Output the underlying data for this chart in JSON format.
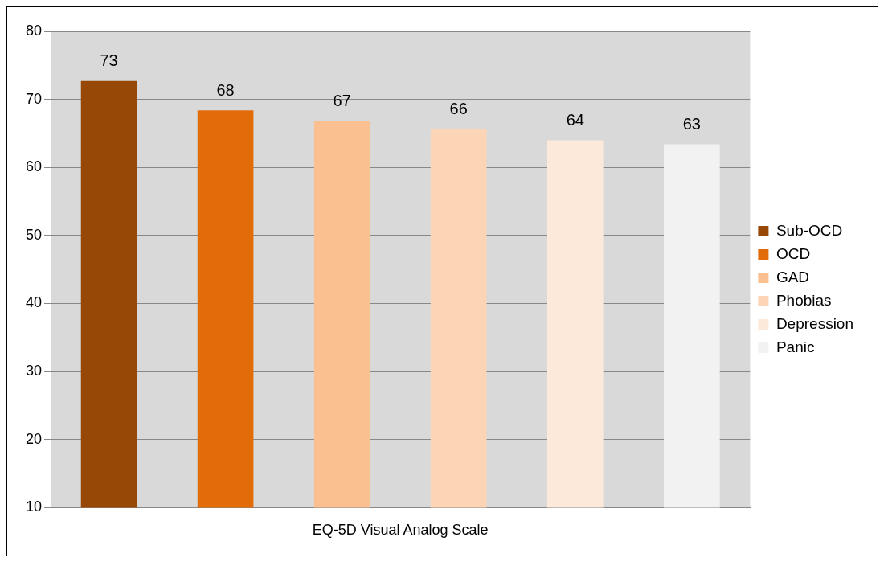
{
  "chart_data": {
    "type": "bar",
    "categories": [
      "EQ-5D Visual Analog Scale"
    ],
    "series": [
      {
        "name": "Sub-OCD",
        "color": "#974706",
        "values": [
          72.7
        ],
        "value_labels": [
          "73"
        ]
      },
      {
        "name": "OCD",
        "color": "#e36c0a",
        "values": [
          68.4
        ],
        "value_labels": [
          "68"
        ]
      },
      {
        "name": "GAD",
        "color": "#fac090",
        "values": [
          66.8
        ],
        "value_labels": [
          "67"
        ]
      },
      {
        "name": "Phobias",
        "color": "#fbd5b5",
        "values": [
          65.6
        ],
        "value_labels": [
          "66"
        ]
      },
      {
        "name": "Depression",
        "color": "#fde9d9",
        "values": [
          64.0
        ],
        "value_labels": [
          "64"
        ]
      },
      {
        "name": "Panic",
        "color": "#f2f2f2",
        "values": [
          63.4
        ],
        "value_labels": [
          "63"
        ]
      }
    ],
    "ylim": [
      10,
      80
    ],
    "yticks": [
      10,
      20,
      30,
      40,
      50,
      60,
      70,
      80
    ],
    "grid": "y",
    "legend": "right"
  }
}
